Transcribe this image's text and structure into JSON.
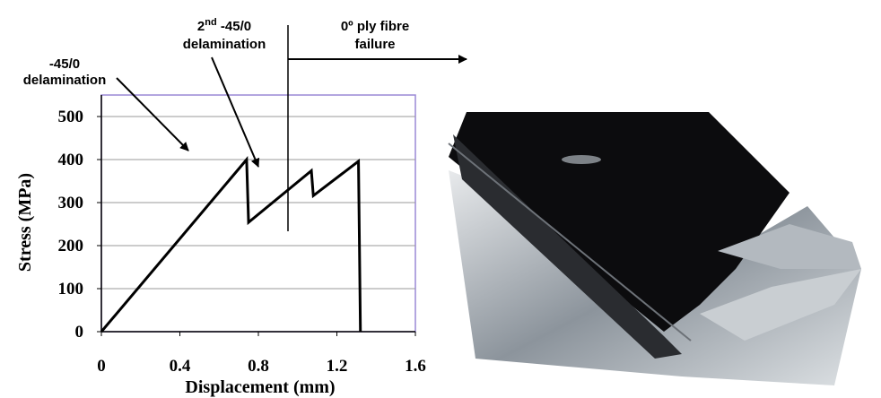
{
  "chart_data": {
    "type": "line",
    "x_label": "Displacement (mm)",
    "y_label": "Stress (MPa)",
    "x": [
      0,
      0.74,
      0.75,
      1.07,
      1.08,
      1.31,
      1.32
    ],
    "values": [
      0,
      400,
      254,
      374,
      316,
      396,
      0
    ],
    "color": "#000000",
    "xlim": [
      0,
      1.6
    ],
    "xticks": [
      0,
      0.4,
      0.8,
      1.2,
      1.6
    ],
    "ylim": [
      0,
      550
    ],
    "yticks": [
      0,
      100,
      200,
      300,
      400,
      500
    ],
    "grid": true,
    "annotations": {
      "first": [
        "-45/0",
        "delamination"
      ],
      "second": {
        "number": "2",
        "sup": "nd",
        "rest": " -45/0",
        "line2": "delamination"
      },
      "third": [
        "0º ply fibre",
        "failure"
      ]
    }
  }
}
